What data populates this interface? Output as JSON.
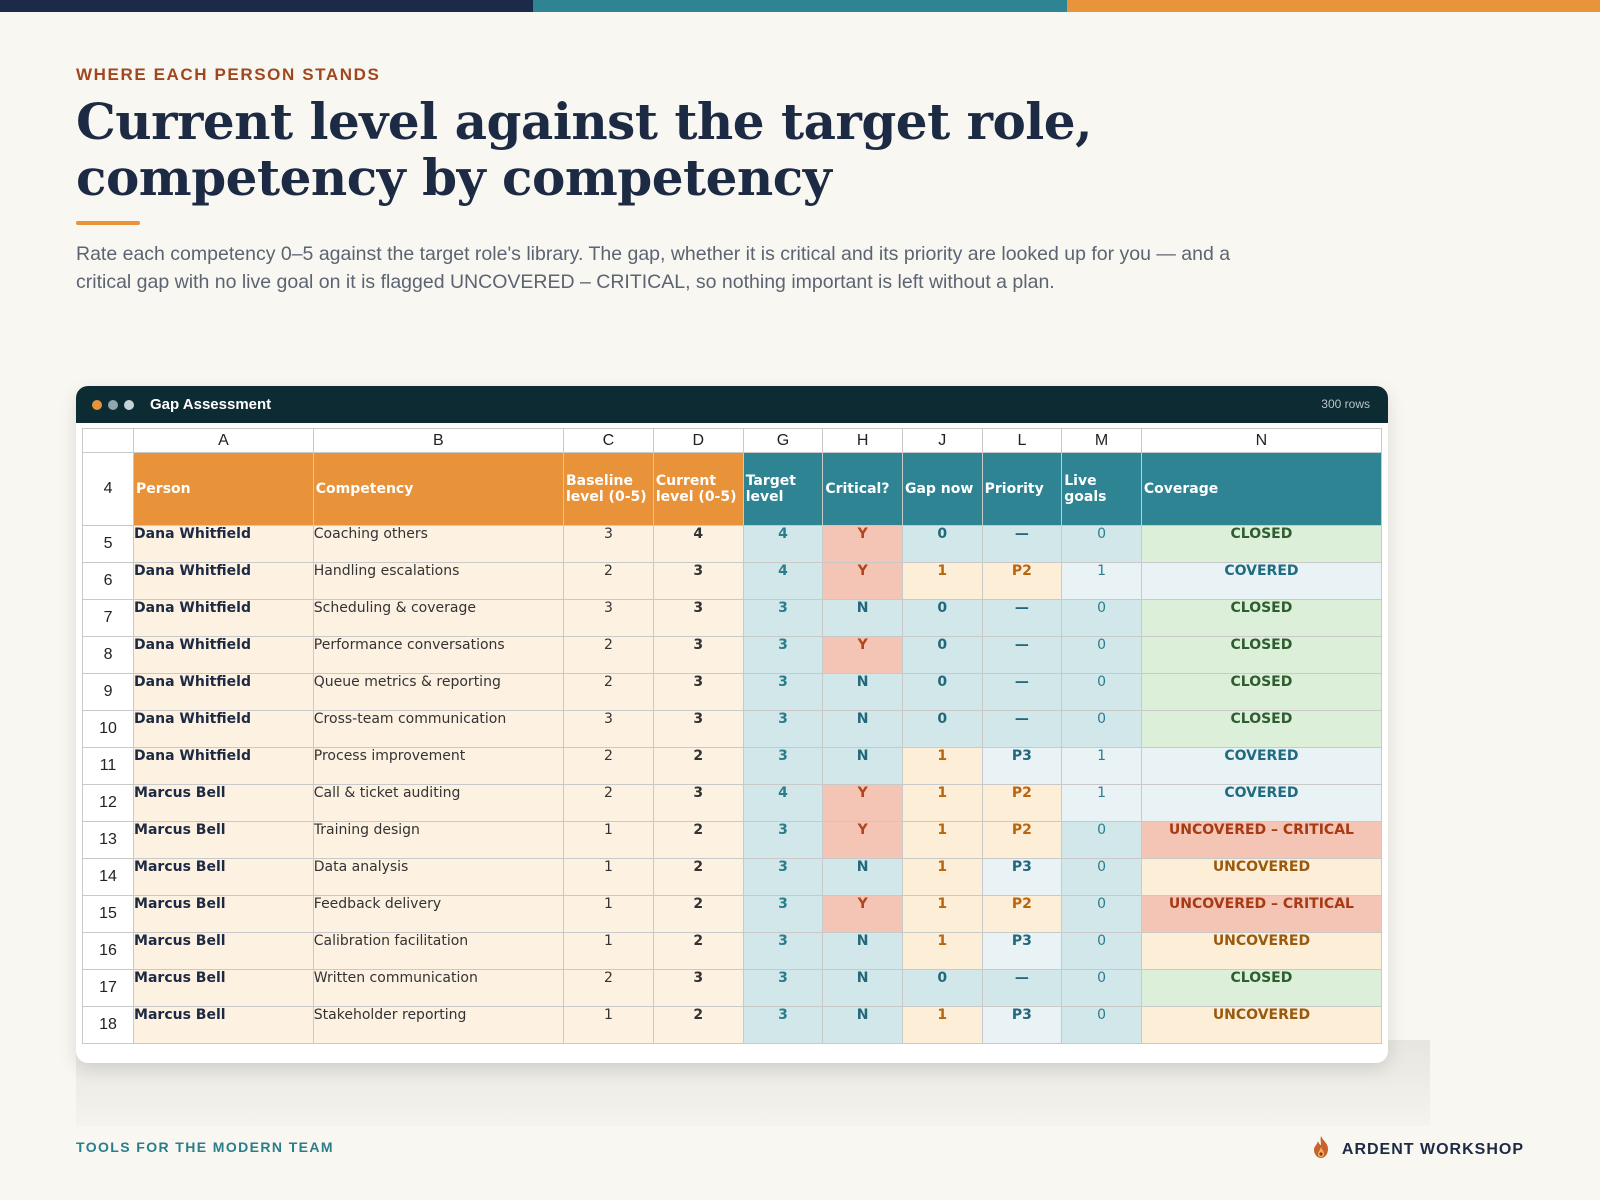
{
  "colors": {
    "navy": "#1d2a44",
    "teal": "#2a7e8c",
    "orange": "#e8923a",
    "rust": "#a0471f",
    "window_bar": "#0d2b33"
  },
  "top_stripes": [
    "#1b2a47",
    "#2f8494",
    "#e8943b"
  ],
  "eyebrow": "WHERE EACH PERSON STANDS",
  "headline": "Current level against the target role, competency by competency",
  "lede": "Rate each competency 0–5 against the target role's library. The gap, whether it is critical and its priority are looked up for you — and a critical gap with no live goal on it is flagged UNCOVERED – CRITICAL, so nothing important is left without a plan.",
  "window": {
    "title": "Gap Assessment",
    "row_count": "300 rows",
    "dots": [
      "#e8923a",
      "#8fa6ad",
      "#c5d3d7"
    ]
  },
  "sheet": {
    "column_letters": [
      "A",
      "B",
      "C",
      "D",
      "G",
      "H",
      "J",
      "L",
      "M",
      "N"
    ],
    "header_row_number": "4",
    "headers": [
      "Person",
      "Competency",
      "Baseline level (0-5)",
      "Current level (0-5)",
      "Target level",
      "Critical?",
      "Gap now",
      "Priority",
      "Live goals",
      "Coverage"
    ],
    "header_colors": [
      "#e8923a",
      "#e8923a",
      "#e8923a",
      "#e8923a",
      "#2f8494",
      "#2f8494",
      "#2f8494",
      "#2f8494",
      "#2f8494",
      "#2f8494"
    ],
    "rows": [
      {
        "n": "5",
        "person": "Dana Whitfield",
        "competency": "Coaching others",
        "baseline": "3",
        "current": "4",
        "target": "4",
        "critical": "Y",
        "gap": "0",
        "priority": "—",
        "live_goals": "0",
        "coverage": "CLOSED"
      },
      {
        "n": "6",
        "person": "Dana Whitfield",
        "competency": "Handling escalations",
        "baseline": "2",
        "current": "3",
        "target": "4",
        "critical": "Y",
        "gap": "1",
        "priority": "P2",
        "live_goals": "1",
        "coverage": "COVERED"
      },
      {
        "n": "7",
        "person": "Dana Whitfield",
        "competency": "Scheduling & coverage",
        "baseline": "3",
        "current": "3",
        "target": "3",
        "critical": "N",
        "gap": "0",
        "priority": "—",
        "live_goals": "0",
        "coverage": "CLOSED"
      },
      {
        "n": "8",
        "person": "Dana Whitfield",
        "competency": "Performance conversations",
        "baseline": "2",
        "current": "3",
        "target": "3",
        "critical": "Y",
        "gap": "0",
        "priority": "—",
        "live_goals": "0",
        "coverage": "CLOSED"
      },
      {
        "n": "9",
        "person": "Dana Whitfield",
        "competency": "Queue metrics & reporting",
        "baseline": "2",
        "current": "3",
        "target": "3",
        "critical": "N",
        "gap": "0",
        "priority": "—",
        "live_goals": "0",
        "coverage": "CLOSED"
      },
      {
        "n": "10",
        "person": "Dana Whitfield",
        "competency": "Cross-team communication",
        "baseline": "3",
        "current": "3",
        "target": "3",
        "critical": "N",
        "gap": "0",
        "priority": "—",
        "live_goals": "0",
        "coverage": "CLOSED"
      },
      {
        "n": "11",
        "person": "Dana Whitfield",
        "competency": "Process improvement",
        "baseline": "2",
        "current": "2",
        "target": "3",
        "critical": "N",
        "gap": "1",
        "priority": "P3",
        "live_goals": "1",
        "coverage": "COVERED"
      },
      {
        "n": "12",
        "person": "Marcus Bell",
        "competency": "Call & ticket auditing",
        "baseline": "2",
        "current": "3",
        "target": "4",
        "critical": "Y",
        "gap": "1",
        "priority": "P2",
        "live_goals": "1",
        "coverage": "COVERED"
      },
      {
        "n": "13",
        "person": "Marcus Bell",
        "competency": "Training design",
        "baseline": "1",
        "current": "2",
        "target": "3",
        "critical": "Y",
        "gap": "1",
        "priority": "P2",
        "live_goals": "0",
        "coverage": "UNCOVERED – CRITICAL"
      },
      {
        "n": "14",
        "person": "Marcus Bell",
        "competency": "Data analysis",
        "baseline": "1",
        "current": "2",
        "target": "3",
        "critical": "N",
        "gap": "1",
        "priority": "P3",
        "live_goals": "0",
        "coverage": "UNCOVERED"
      },
      {
        "n": "15",
        "person": "Marcus Bell",
        "competency": "Feedback delivery",
        "baseline": "1",
        "current": "2",
        "target": "3",
        "critical": "Y",
        "gap": "1",
        "priority": "P2",
        "live_goals": "0",
        "coverage": "UNCOVERED – CRITICAL"
      },
      {
        "n": "16",
        "person": "Marcus Bell",
        "competency": "Calibration facilitation",
        "baseline": "1",
        "current": "2",
        "target": "3",
        "critical": "N",
        "gap": "1",
        "priority": "P3",
        "live_goals": "0",
        "coverage": "UNCOVERED"
      },
      {
        "n": "17",
        "person": "Marcus Bell",
        "competency": "Written communication",
        "baseline": "2",
        "current": "3",
        "target": "3",
        "critical": "N",
        "gap": "0",
        "priority": "—",
        "live_goals": "0",
        "coverage": "CLOSED"
      },
      {
        "n": "18",
        "person": "Marcus Bell",
        "competency": "Stakeholder reporting",
        "baseline": "1",
        "current": "2",
        "target": "3",
        "critical": "N",
        "gap": "1",
        "priority": "P3",
        "live_goals": "0",
        "coverage": "UNCOVERED"
      }
    ]
  },
  "footer": {
    "tagline": "TOOLS FOR THE MODERN TEAM",
    "brand": "ARDENT WORKSHOP",
    "brand_icon": "flame-logo-icon"
  }
}
